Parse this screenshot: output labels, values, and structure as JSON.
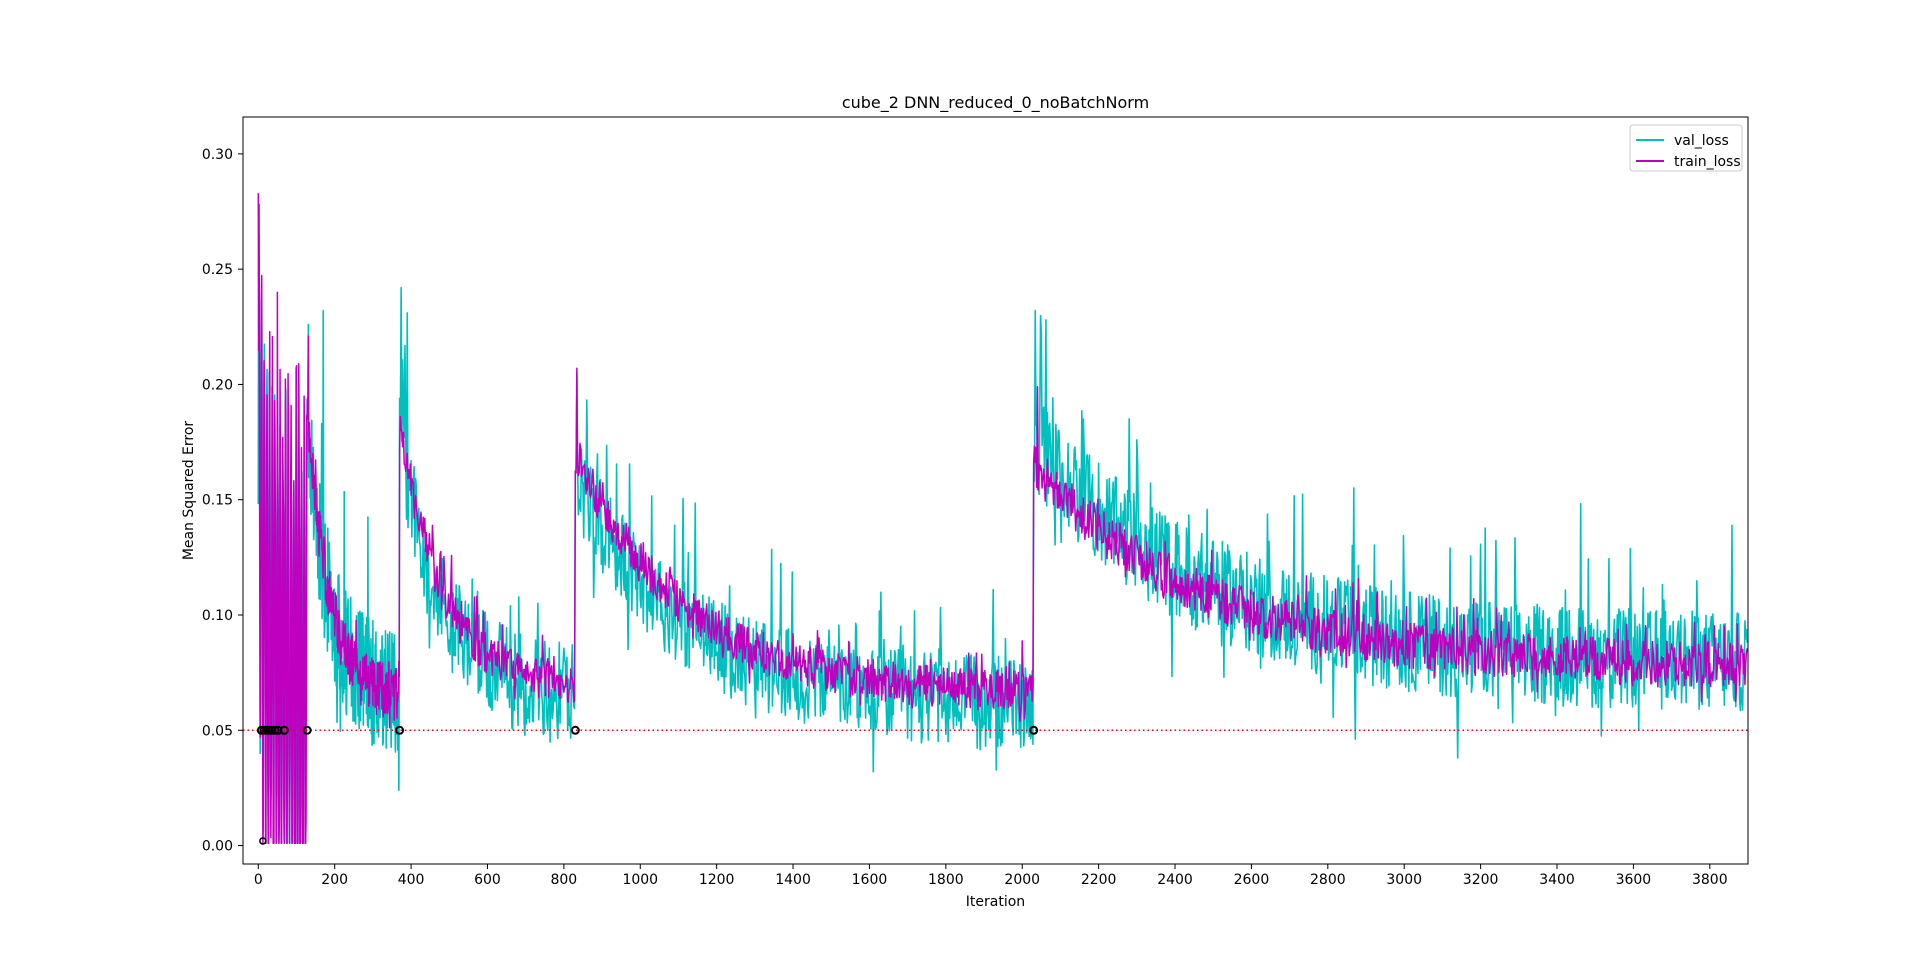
{
  "chart_data": {
    "type": "line",
    "title": "cube_2 DNN_reduced_0_noBatchNorm",
    "xlabel": "Iteration",
    "ylabel": "Mean Squared Error",
    "xlim": [
      -40,
      3900
    ],
    "ylim": [
      -0.008,
      0.316
    ],
    "xticks": [
      0,
      200,
      400,
      600,
      800,
      1000,
      1200,
      1400,
      1600,
      1800,
      2000,
      2200,
      2400,
      2600,
      2800,
      3000,
      3200,
      3400,
      3600,
      3800
    ],
    "yticks": [
      0.0,
      0.05,
      0.1,
      0.15,
      0.2,
      0.25,
      0.3
    ],
    "ytick_labels": [
      "0.00",
      "0.05",
      "0.10",
      "0.15",
      "0.20",
      "0.25",
      "0.30"
    ],
    "legend_placement": "top-right",
    "grid": false,
    "threshold": {
      "y": 0.05,
      "style": "dotted",
      "color": "#ff0000"
    },
    "restart_markers": {
      "x": [
        8,
        15,
        22,
        29,
        36,
        44,
        52,
        68,
        128,
        370,
        830,
        2030
      ],
      "y": 0.05,
      "low_x": [
        12
      ],
      "low_y": 0.002
    },
    "series": [
      {
        "name": "val_loss",
        "color": "#00bfbf",
        "segments": [
          {
            "x0": 0,
            "x1": 128,
            "start": 0.17,
            "end": 0.07,
            "noise": 0.06,
            "spike": 0.08
          },
          {
            "x0": 128,
            "x1": 370,
            "start": 0.18,
            "end": 0.065,
            "noise": 0.028,
            "spike": 0.06
          },
          {
            "x0": 370,
            "x1": 830,
            "start": 0.175,
            "end": 0.065,
            "noise": 0.022,
            "spike": 0.045
          },
          {
            "x0": 830,
            "x1": 2030,
            "start": 0.16,
            "end": 0.06,
            "noise": 0.02,
            "spike": 0.05
          },
          {
            "x0": 2030,
            "x1": 3900,
            "start": 0.175,
            "end": 0.078,
            "noise": 0.022,
            "spike": 0.06
          }
        ],
        "peaks": [
          [
            131,
            0.226
          ],
          [
            170,
            0.232
          ],
          [
            375,
            0.242
          ],
          [
            390,
            0.231
          ],
          [
            835,
            0.205
          ],
          [
            2035,
            0.232
          ],
          [
            2050,
            0.222
          ],
          [
            2300,
            0.176
          ],
          [
            3140,
            0.038
          ],
          [
            1610,
            0.032
          ]
        ]
      },
      {
        "name": "train_loss",
        "color": "#bf00bf",
        "segments": [
          {
            "x0": 0,
            "x1": 128,
            "start": 0.15,
            "end": 0.07,
            "noise": 0.07,
            "spike": 0.1
          },
          {
            "x0": 128,
            "x1": 370,
            "start": 0.19,
            "end": 0.063,
            "noise": 0.012,
            "spike": 0.02
          },
          {
            "x0": 370,
            "x1": 830,
            "start": 0.185,
            "end": 0.07,
            "noise": 0.01,
            "spike": 0.015
          },
          {
            "x0": 830,
            "x1": 2030,
            "start": 0.17,
            "end": 0.065,
            "noise": 0.009,
            "spike": 0.015
          },
          {
            "x0": 2030,
            "x1": 3900,
            "start": 0.165,
            "end": 0.077,
            "noise": 0.01,
            "spike": 0.02
          }
        ],
        "peaks": [
          [
            0,
            0.283
          ],
          [
            50,
            0.24
          ],
          [
            131,
            0.221
          ],
          [
            2040,
            0.199
          ],
          [
            835,
            0.207
          ]
        ]
      }
    ]
  }
}
